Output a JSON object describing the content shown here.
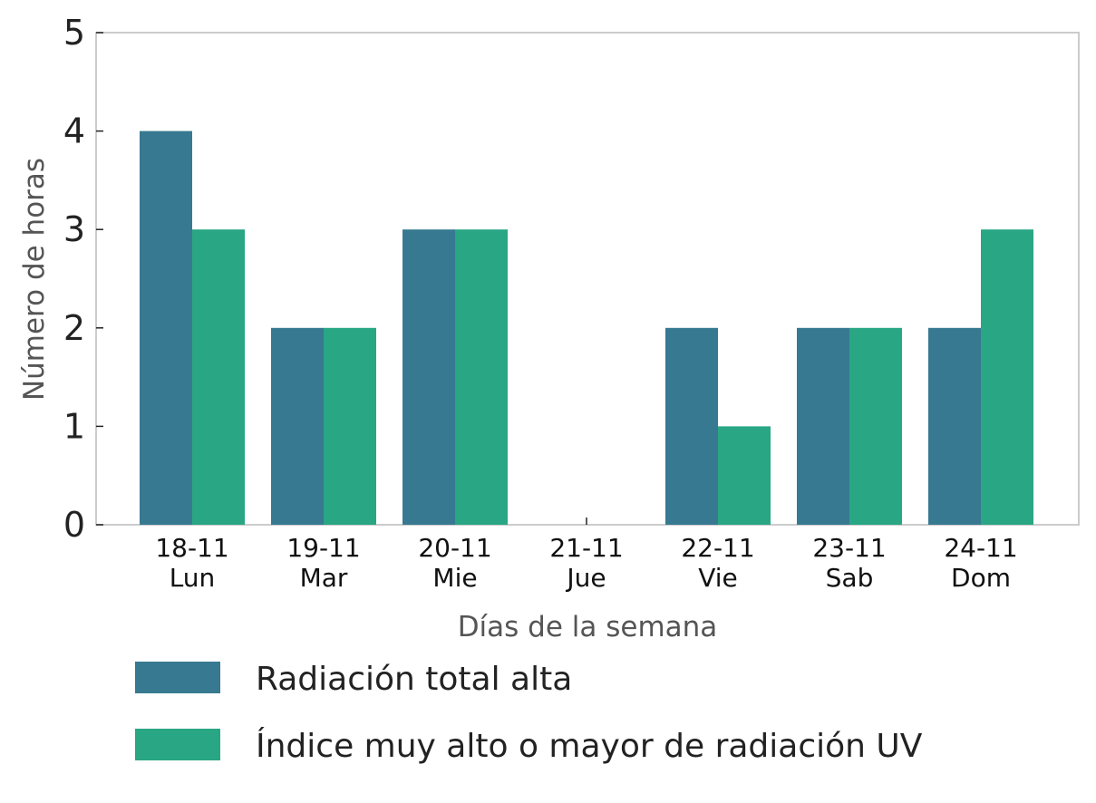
{
  "chart_data": {
    "type": "bar",
    "categories": [
      "18-11\nLun",
      "19-11\nMar",
      "20-11\nMie",
      "21-11\nJue",
      "22-11\nVie",
      "23-11\nSab",
      "24-11\nDom"
    ],
    "series": [
      {
        "name": "Radiación total alta",
        "color": "#377991",
        "values": [
          4,
          2,
          3,
          0,
          2,
          2,
          2
        ]
      },
      {
        "name": "Índice muy alto o mayor de radiación UV",
        "color": "#29a684",
        "values": [
          3,
          2,
          3,
          0,
          1,
          2,
          3
        ]
      }
    ],
    "xlabel": "Días de la semana",
    "ylabel": "Número de horas",
    "ylim": [
      0,
      5
    ],
    "yticks": [
      0,
      1,
      2,
      3,
      4,
      5
    ],
    "grid": false,
    "legend_position": "bottom"
  }
}
